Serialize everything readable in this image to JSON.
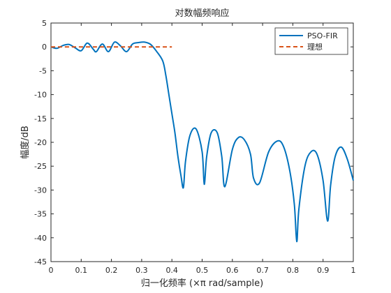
{
  "chart_data": {
    "type": "line",
    "title": "对数幅频响应",
    "xlabel": "归一化频率 (×π rad/sample)",
    "ylabel": "幅度/dB",
    "xlim": [
      0,
      1
    ],
    "ylim": [
      -45,
      5
    ],
    "xticks": [
      0,
      0.1,
      0.2,
      0.3,
      0.4,
      0.5,
      0.6,
      0.7,
      0.8,
      0.9,
      1
    ],
    "xtick_labels": [
      "0",
      "0.1",
      "0.2",
      "0.3",
      "0.4",
      "0.5",
      "0.6",
      "0.7",
      "0.8",
      "0.9",
      "1"
    ],
    "yticks": [
      5,
      0,
      -5,
      -10,
      -15,
      -20,
      -25,
      -30,
      -35,
      -40,
      -45
    ],
    "ytick_labels": [
      "5",
      "0",
      "-5",
      "-10",
      "-15",
      "-20",
      "-25",
      "-30",
      "-35",
      "-40",
      "-45"
    ],
    "grid": false,
    "legend_position": "top-right",
    "series": [
      {
        "name": "PSO-FIR",
        "color": "#0072BD",
        "style": "solid",
        "x": [
          0,
          0.02,
          0.04,
          0.06,
          0.08,
          0.1,
          0.12,
          0.14,
          0.15,
          0.17,
          0.19,
          0.21,
          0.23,
          0.25,
          0.27,
          0.29,
          0.31,
          0.33,
          0.35,
          0.37,
          0.38,
          0.39,
          0.4,
          0.41,
          0.42,
          0.43,
          0.438,
          0.445,
          0.46,
          0.48,
          0.5,
          0.507,
          0.515,
          0.53,
          0.55,
          0.565,
          0.575,
          0.6,
          0.62,
          0.64,
          0.66,
          0.67,
          0.69,
          0.72,
          0.75,
          0.77,
          0.79,
          0.805,
          0.813,
          0.82,
          0.84,
          0.86,
          0.88,
          0.9,
          0.915,
          0.925,
          0.94,
          0.96,
          0.98,
          1
        ],
        "y": [
          0,
          -0.3,
          0.3,
          0.5,
          -0.2,
          -0.8,
          0.8,
          -0.5,
          -1.0,
          0.6,
          -1.0,
          1.0,
          0.2,
          -1.0,
          0.6,
          0.9,
          1.0,
          0.5,
          -1.0,
          -3.0,
          -6.0,
          -10.0,
          -14.0,
          -18.0,
          -23.0,
          -27.0,
          -29.5,
          -24.0,
          -18.5,
          -17.2,
          -22.0,
          -28.8,
          -23.0,
          -18.0,
          -18.0,
          -23.0,
          -29.3,
          -21.5,
          -19.0,
          -19.5,
          -22.5,
          -27.5,
          -28.5,
          -22.0,
          -19.7,
          -21.0,
          -26.0,
          -33.0,
          -40.8,
          -34.0,
          -25.0,
          -22.0,
          -22.5,
          -28.0,
          -36.5,
          -29.0,
          -23.0,
          -21.0,
          -23.5,
          -28.0
        ]
      },
      {
        "name": "理想",
        "color": "#D95319",
        "style": "dashed",
        "x": [
          0,
          0.4
        ],
        "y": [
          0,
          0
        ]
      }
    ]
  }
}
